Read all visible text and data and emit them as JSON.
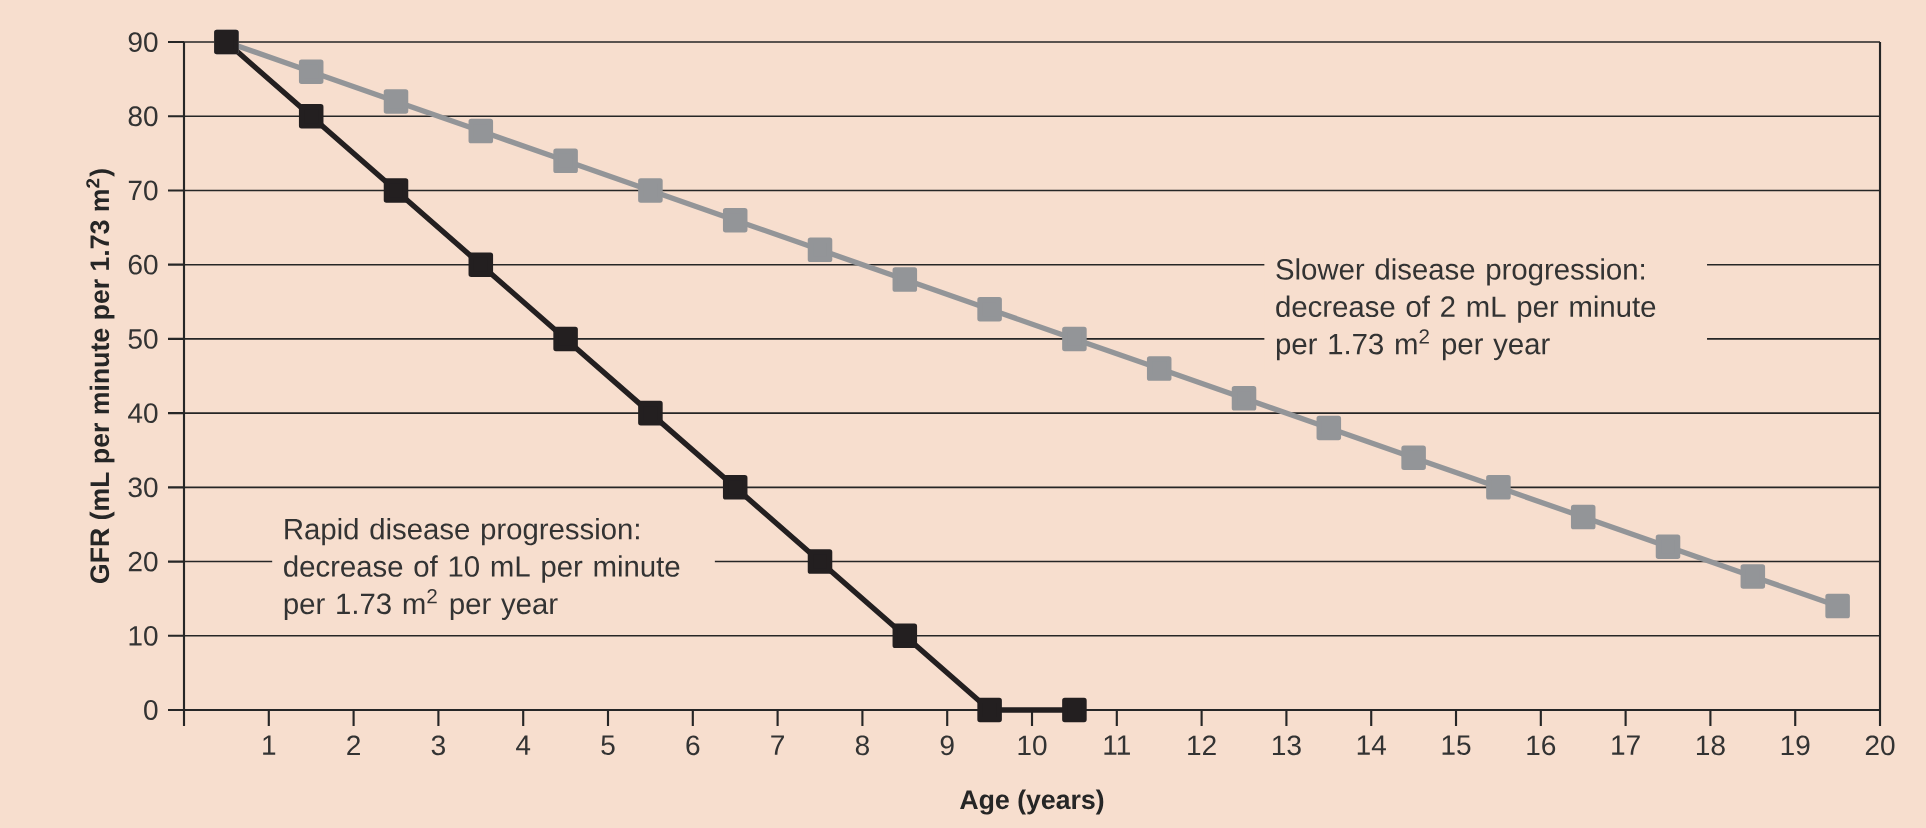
{
  "chart_data": {
    "type": "line",
    "xlabel": "Age (years)",
    "ylabel": "GFR (mL per minute per 1.73 m$^{2}$)",
    "xlim": [
      0,
      20
    ],
    "ylim": [
      0,
      90
    ],
    "xticks": [
      {
        "value": 0,
        "label": null
      },
      1,
      2,
      3,
      4,
      5,
      6,
      7,
      8,
      9,
      10,
      11,
      12,
      13,
      14,
      15,
      16,
      17,
      18,
      19,
      20
    ],
    "yticks": [
      0,
      10,
      20,
      30,
      40,
      50,
      60,
      70,
      80,
      90
    ],
    "grid": "y",
    "marker": "square",
    "line_style": "solid",
    "series": [
      {
        "color": "#939598",
        "x": [
          0.5,
          1.5,
          2.5,
          3.5,
          4.5,
          5.5,
          6.5,
          7.5,
          8.5,
          9.5,
          10.5,
          11.5,
          12.5,
          13.5,
          14.5,
          15.5,
          16.5,
          17.5,
          18.5,
          19.5
        ],
        "values": [
          90,
          86,
          82,
          78,
          74,
          70,
          66,
          62,
          58,
          54,
          50,
          46,
          42,
          38,
          34,
          30,
          26,
          22,
          18,
          14
        ]
      },
      {
        "color": "#231f20",
        "x": [
          0.5,
          1.5,
          2.5,
          3.5,
          4.5,
          5.5,
          6.5,
          7.5,
          8.5,
          9.5,
          10.5
        ],
        "values": [
          90,
          80,
          70,
          60,
          50,
          40,
          30,
          20,
          10,
          0,
          0
        ]
      }
    ],
    "annotations": [
      "Slower disease progression: decrease of 2 mL per minute per 1.73 m$^{2}$ per year",
      "Rapid disease progression: decrease of 10 mL per minute per 1.73 m$^{2}$ per year"
    ]
  }
}
